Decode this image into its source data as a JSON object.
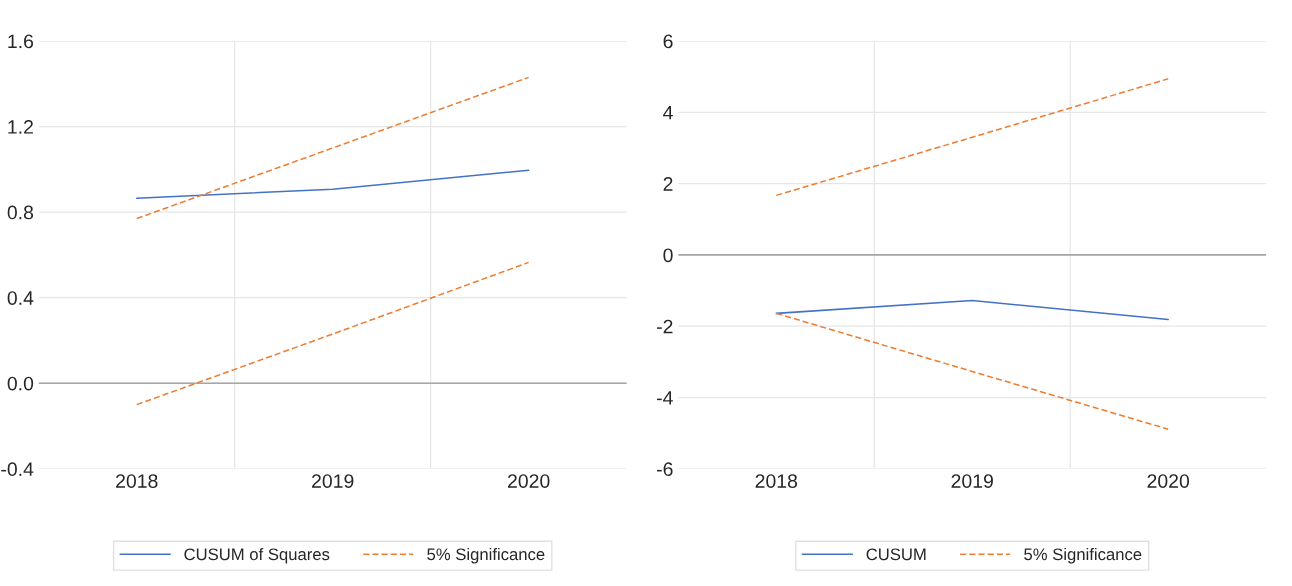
{
  "chart_data": [
    {
      "type": "line",
      "categories": [
        "2018",
        "2019",
        "2020"
      ],
      "series": [
        {
          "name": "CUSUM of Squares",
          "color": "#4472c4",
          "values": [
            0.865,
            0.907,
            0.996
          ],
          "line_style": "solid"
        },
        {
          "name": "5% Significance",
          "color": "#ed7d31",
          "values": [
            0.77,
            1.1,
            1.43
          ],
          "line_style": "dashed"
        },
        {
          "color": "#ed7d31",
          "values": [
            -0.1,
            0.23,
            0.565
          ],
          "line_style": "dashed"
        }
      ],
      "ylim": [
        -0.4,
        1.6
      ],
      "yticks": [
        {
          "value": -0.4,
          "label": "-0.4"
        },
        {
          "value": 0,
          "label": "0.0"
        },
        0.4,
        0.8,
        1.2,
        1.6
      ],
      "ref_lines": [
        {
          "axis": "y",
          "value": 0,
          "color": "#a6a6a6"
        }
      ],
      "grid": true,
      "legend": "bottom"
    },
    {
      "type": "line",
      "categories": [
        "2018",
        "2019",
        "2020"
      ],
      "series": [
        {
          "name": "CUSUM",
          "color": "#4472c4",
          "values": [
            -1.64,
            -1.28,
            -1.81
          ],
          "line_style": "solid"
        },
        {
          "name": "5% Significance",
          "color": "#ed7d31",
          "values": [
            1.67,
            3.3,
            4.94
          ],
          "line_style": "dashed"
        },
        {
          "color": "#ed7d31",
          "values": [
            -1.64,
            -3.27,
            -4.89
          ],
          "line_style": "dashed"
        }
      ],
      "ylim": [
        -6,
        6
      ],
      "yticks": [
        {
          "value": -6,
          "label": "-6"
        },
        {
          "value": -4,
          "label": "-4"
        },
        {
          "value": -2,
          "label": "-2"
        },
        0,
        2,
        4,
        6
      ],
      "ref_lines": [
        {
          "axis": "y",
          "value": 0,
          "color": "#a6a6a6"
        }
      ],
      "grid": true,
      "legend": "bottom"
    }
  ]
}
